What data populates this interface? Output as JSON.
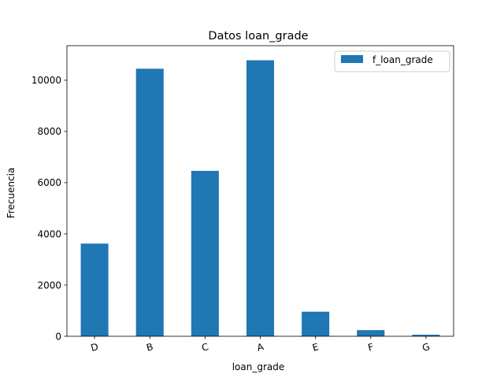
{
  "chart_data": {
    "type": "bar",
    "title": "Datos loan_grade",
    "xlabel": "loan_grade",
    "ylabel": "Frecuencia",
    "categories": [
      "D",
      "B",
      "C",
      "A",
      "E",
      "F",
      "G"
    ],
    "series": [
      {
        "name": "f_loan_grade",
        "values": [
          3620,
          10450,
          6460,
          10780,
          960,
          240,
          60
        ],
        "color": "#1f77b4"
      }
    ],
    "ylim": [
      0,
      11350
    ],
    "yticks": [
      0,
      2000,
      4000,
      6000,
      8000,
      10000
    ],
    "ytick_labels": [
      "0",
      "2000",
      "4000",
      "6000",
      "8000",
      "10000"
    ],
    "grid": false,
    "legend_position": "top-right",
    "xtick_rotation": -15
  }
}
